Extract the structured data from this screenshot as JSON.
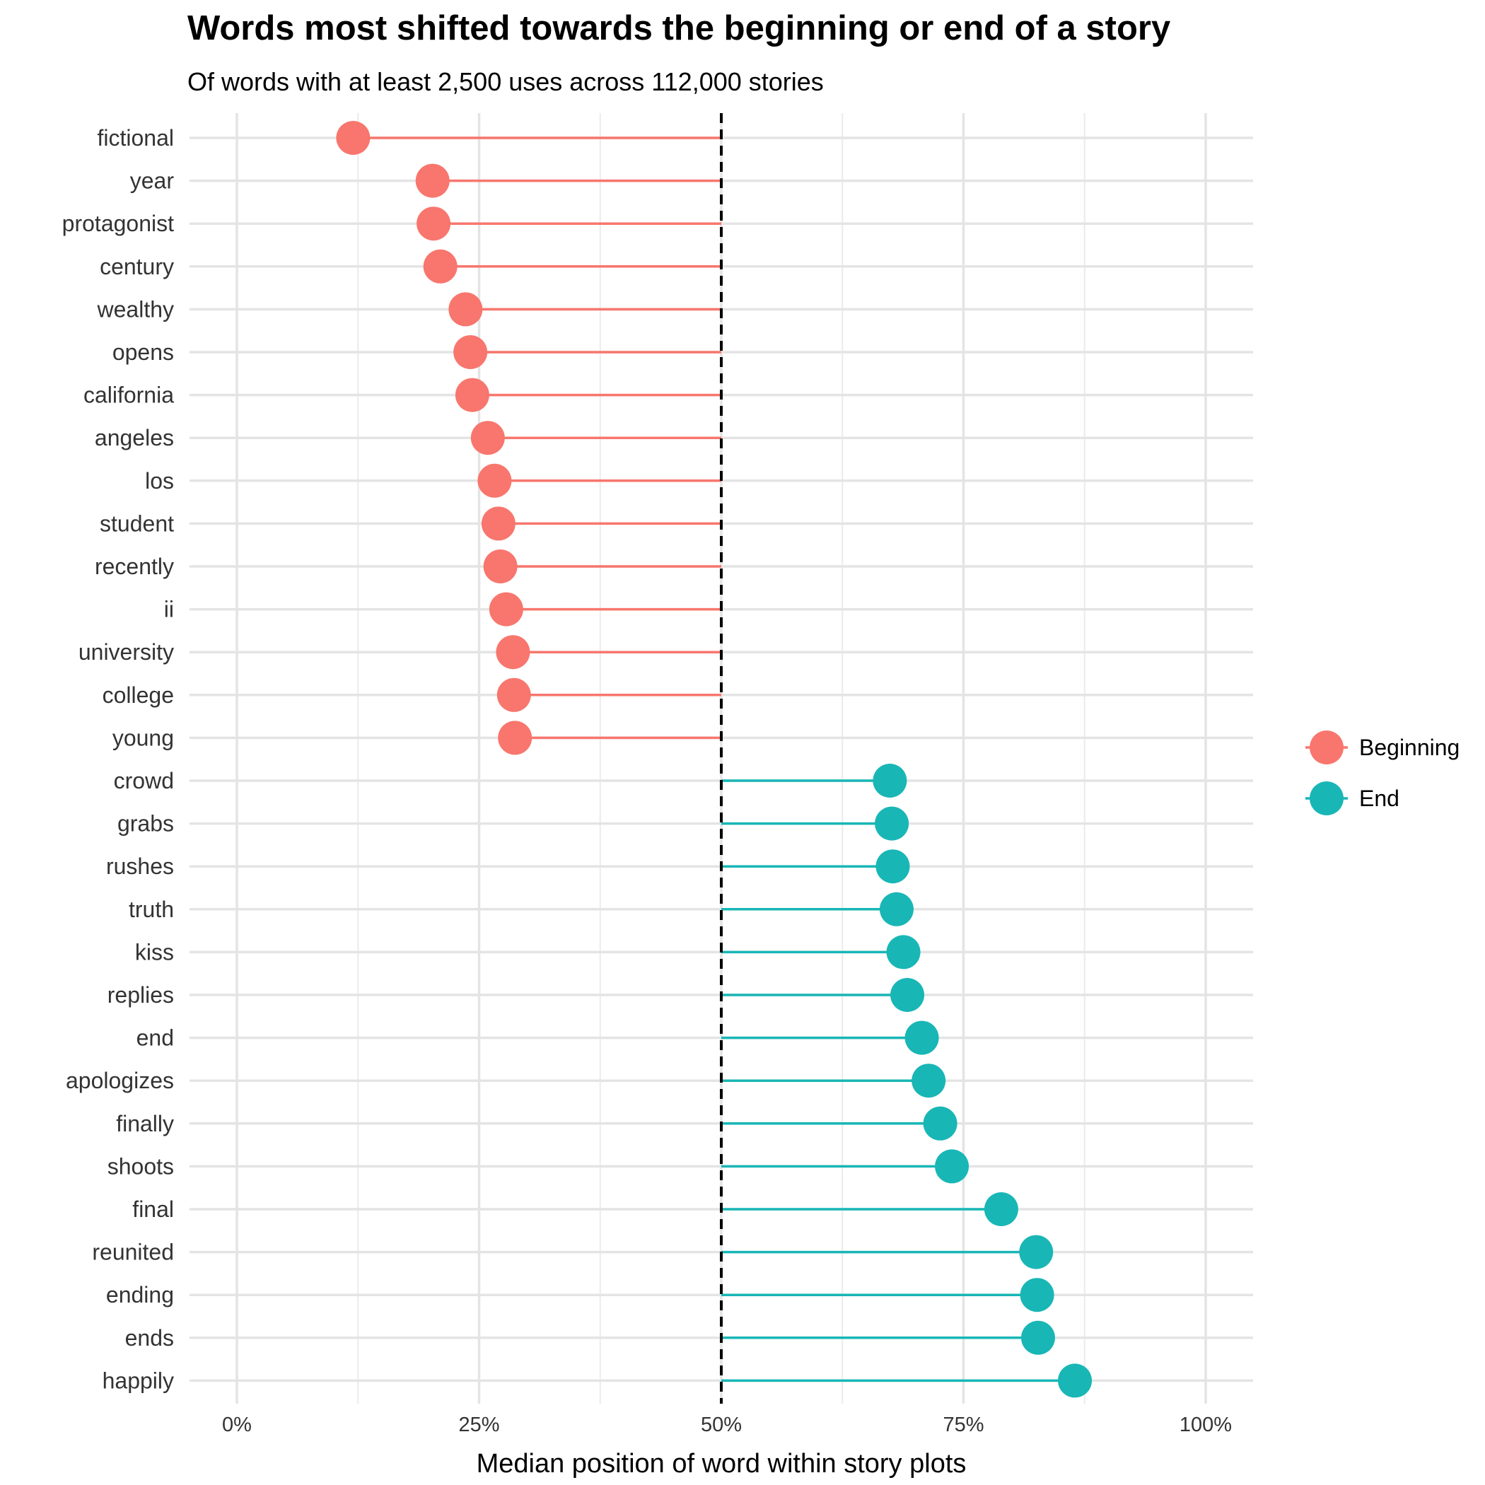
{
  "chart_data": {
    "type": "lollipop",
    "title": "Words most shifted towards the beginning or end of a story",
    "subtitle": "Of words with at least 2,500 uses across 112,000 stories",
    "xlabel": "Median position of word within story plots",
    "ylabel": "",
    "xlim": [
      0,
      1
    ],
    "xticks": [
      0,
      0.25,
      0.5,
      0.75,
      1
    ],
    "xtick_labels": [
      "0%",
      "25%",
      "50%",
      "75%",
      "100%"
    ],
    "reference_line": {
      "x": 0.5,
      "style": "dashed",
      "color": "#000000"
    },
    "grid": true,
    "legend": {
      "position": "right",
      "entries": [
        {
          "label": "Beginning",
          "color": "#F8766D"
        },
        {
          "label": "End",
          "color": "#19B6B6"
        }
      ]
    },
    "points": [
      {
        "word": "fictional",
        "value": 0.12,
        "group": "Beginning"
      },
      {
        "word": "year",
        "value": 0.202,
        "group": "Beginning"
      },
      {
        "word": "protagonist",
        "value": 0.203,
        "group": "Beginning"
      },
      {
        "word": "century",
        "value": 0.21,
        "group": "Beginning"
      },
      {
        "word": "wealthy",
        "value": 0.236,
        "group": "Beginning"
      },
      {
        "word": "opens",
        "value": 0.241,
        "group": "Beginning"
      },
      {
        "word": "california",
        "value": 0.243,
        "group": "Beginning"
      },
      {
        "word": "angeles",
        "value": 0.259,
        "group": "Beginning"
      },
      {
        "word": "los",
        "value": 0.266,
        "group": "Beginning"
      },
      {
        "word": "student",
        "value": 0.27,
        "group": "Beginning"
      },
      {
        "word": "recently",
        "value": 0.272,
        "group": "Beginning"
      },
      {
        "word": "ii",
        "value": 0.278,
        "group": "Beginning"
      },
      {
        "word": "university",
        "value": 0.285,
        "group": "Beginning"
      },
      {
        "word": "college",
        "value": 0.286,
        "group": "Beginning"
      },
      {
        "word": "young",
        "value": 0.287,
        "group": "Beginning"
      },
      {
        "word": "crowd",
        "value": 0.674,
        "group": "End"
      },
      {
        "word": "grabs",
        "value": 0.676,
        "group": "End"
      },
      {
        "word": "rushes",
        "value": 0.677,
        "group": "End"
      },
      {
        "word": "truth",
        "value": 0.681,
        "group": "End"
      },
      {
        "word": "kiss",
        "value": 0.688,
        "group": "End"
      },
      {
        "word": "replies",
        "value": 0.692,
        "group": "End"
      },
      {
        "word": "end",
        "value": 0.707,
        "group": "End"
      },
      {
        "word": "apologizes",
        "value": 0.714,
        "group": "End"
      },
      {
        "word": "finally",
        "value": 0.726,
        "group": "End"
      },
      {
        "word": "shoots",
        "value": 0.738,
        "group": "End"
      },
      {
        "word": "final",
        "value": 0.789,
        "group": "End"
      },
      {
        "word": "reunited",
        "value": 0.825,
        "group": "End"
      },
      {
        "word": "ending",
        "value": 0.826,
        "group": "End"
      },
      {
        "word": "ends",
        "value": 0.827,
        "group": "End"
      },
      {
        "word": "happily",
        "value": 0.865,
        "group": "End"
      }
    ]
  }
}
